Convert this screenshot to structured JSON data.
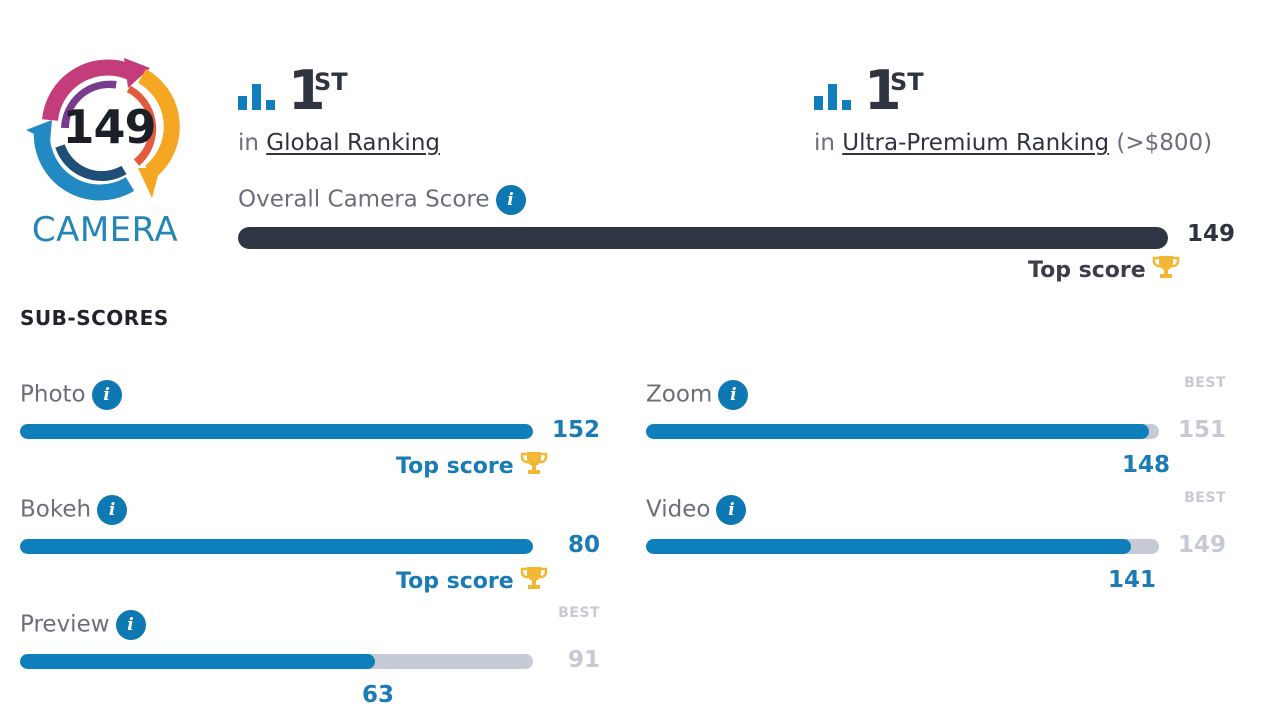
{
  "badge": {
    "score": "149",
    "label": "CAMERA"
  },
  "rankings": [
    {
      "position": "1",
      "suffix": "ST",
      "prefix": "in",
      "link": "Global Ranking",
      "suffix_text": ""
    },
    {
      "position": "1",
      "suffix": "ST",
      "prefix": "in",
      "link": "Ultra-Premium Ranking",
      "suffix_text": "(>$800)"
    }
  ],
  "overall": {
    "label": "Overall Camera Score",
    "value": "149",
    "fraction": 1.0,
    "top_score": "Top score"
  },
  "subscores_heading": "SUB-SCORES",
  "subscores": {
    "photo": {
      "label": "Photo",
      "value": "152",
      "fraction": 1.0,
      "top_score": "Top score"
    },
    "bokeh": {
      "label": "Bokeh",
      "value": "80",
      "fraction": 1.0,
      "top_score": "Top score"
    },
    "preview": {
      "label": "Preview",
      "value": "63",
      "best": "91",
      "best_label": "BEST",
      "fraction": 0.692
    },
    "zoom": {
      "label": "Zoom",
      "value": "148",
      "best": "151",
      "best_label": "BEST",
      "fraction": 0.98
    },
    "video": {
      "label": "Video",
      "value": "141",
      "best": "149",
      "best_label": "BEST",
      "fraction": 0.946
    }
  },
  "colors": {
    "accent": "#0e7fba",
    "dark_bar": "#2f3543",
    "track": "#c5cad6",
    "trophy": "#f2b734"
  },
  "icons": {
    "rank": "bar-chart-icon",
    "info": "info-icon",
    "trophy": "trophy-icon"
  }
}
